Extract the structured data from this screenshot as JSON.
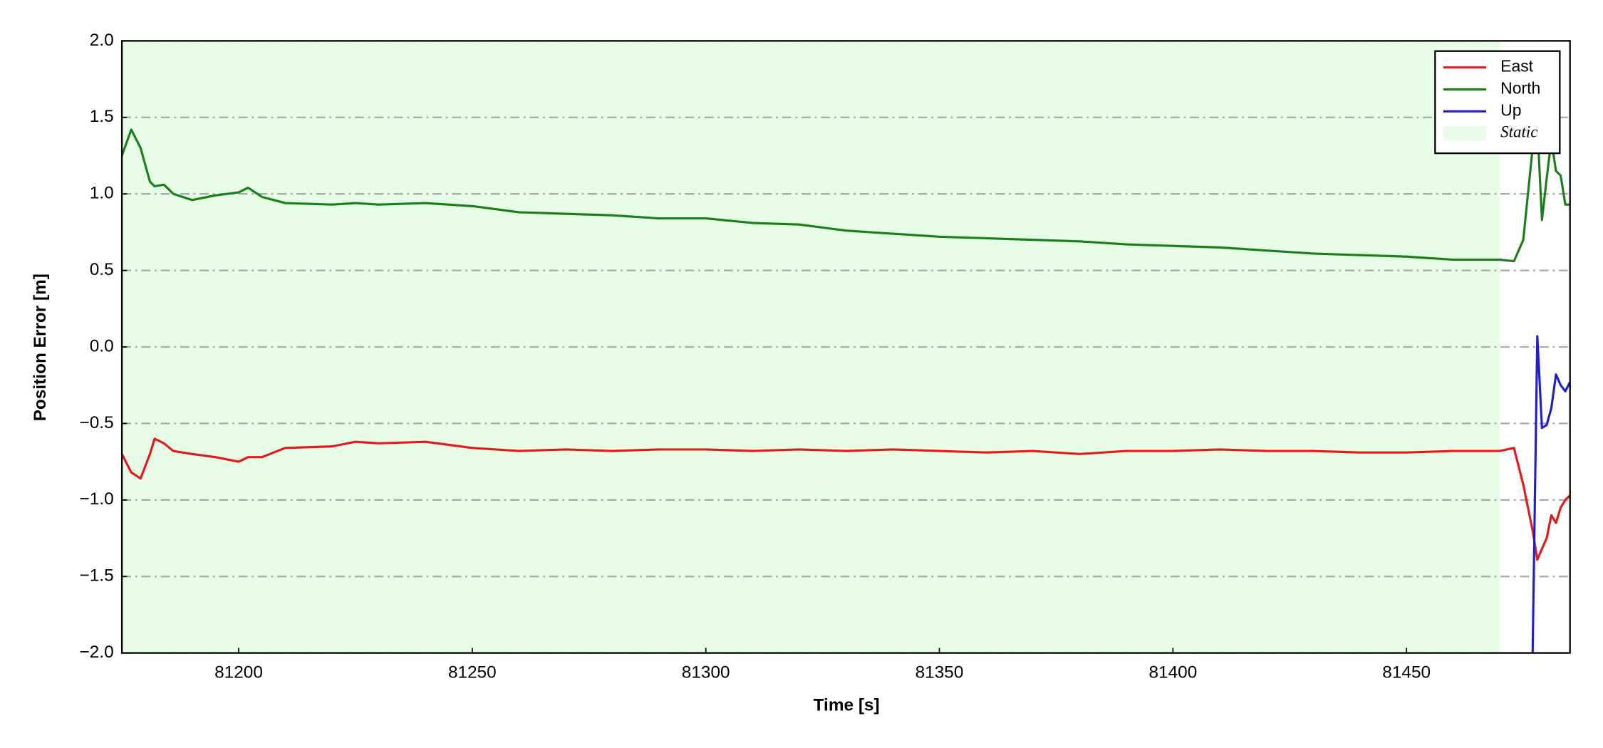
{
  "chart_data": {
    "type": "line",
    "xlabel": "Time [s]",
    "ylabel": "Position Error [m]",
    "x": [
      81175,
      81177,
      81179,
      81181,
      81182,
      81184,
      81186,
      81190,
      81195,
      81200,
      81202,
      81205,
      81210,
      81220,
      81225,
      81230,
      81240,
      81250,
      81260,
      81270,
      81280,
      81290,
      81300,
      81310,
      81320,
      81330,
      81340,
      81350,
      81360,
      81370,
      81380,
      81390,
      81400,
      81410,
      81420,
      81430,
      81440,
      81450,
      81460,
      81470,
      81473,
      81475,
      81477,
      81478,
      81479,
      81480,
      81481,
      81482,
      81483,
      81484,
      81485
    ],
    "series": [
      {
        "name": "East",
        "color": "#e31a1c",
        "values": [
          -0.7,
          -0.82,
          -0.86,
          -0.7,
          -0.6,
          -0.63,
          -0.68,
          -0.7,
          -0.72,
          -0.75,
          -0.72,
          -0.72,
          -0.66,
          -0.65,
          -0.62,
          -0.63,
          -0.62,
          -0.66,
          -0.68,
          -0.67,
          -0.68,
          -0.67,
          -0.67,
          -0.68,
          -0.67,
          -0.68,
          -0.67,
          -0.68,
          -0.69,
          -0.68,
          -0.7,
          -0.68,
          -0.68,
          -0.67,
          -0.68,
          -0.68,
          -0.69,
          -0.69,
          -0.68,
          -0.68,
          -0.66,
          -0.9,
          -1.2,
          -1.39,
          -1.32,
          -1.25,
          -1.1,
          -1.15,
          -1.05,
          -1.0,
          -0.97
        ]
      },
      {
        "name": "North",
        "color": "#1a7f1a",
        "values": [
          1.25,
          1.42,
          1.3,
          1.08,
          1.05,
          1.06,
          1.0,
          0.96,
          0.99,
          1.01,
          1.04,
          0.98,
          0.94,
          0.93,
          0.94,
          0.93,
          0.94,
          0.92,
          0.88,
          0.87,
          0.86,
          0.84,
          0.84,
          0.81,
          0.8,
          0.76,
          0.74,
          0.72,
          0.71,
          0.7,
          0.69,
          0.67,
          0.66,
          0.65,
          0.63,
          0.61,
          0.6,
          0.59,
          0.57,
          0.57,
          0.56,
          0.7,
          1.3,
          1.45,
          0.83,
          1.1,
          1.35,
          1.15,
          1.12,
          0.93,
          0.93
        ]
      },
      {
        "name": "Up",
        "color": "#1f1fcf",
        "values": [
          null,
          null,
          null,
          null,
          null,
          null,
          null,
          null,
          null,
          null,
          null,
          null,
          null,
          null,
          null,
          null,
          null,
          null,
          null,
          null,
          null,
          null,
          null,
          null,
          null,
          null,
          null,
          null,
          null,
          null,
          null,
          null,
          null,
          null,
          null,
          null,
          null,
          null,
          null,
          null,
          null,
          null,
          -2.0,
          0.07,
          -0.53,
          -0.51,
          -0.4,
          -0.18,
          -0.25,
          -0.29,
          -0.23
        ]
      }
    ],
    "shaded_regions": [
      {
        "name": "Static",
        "xlim": [
          81175,
          81470
        ],
        "color": "#e8fde8"
      }
    ],
    "xlim": [
      81175,
      81485
    ],
    "ylim": [
      -2.0,
      2.0
    ],
    "xticks": [
      81200,
      81250,
      81300,
      81350,
      81400,
      81450
    ],
    "yticks": [
      {
        "value": -2.0,
        "label": "−2.0"
      },
      {
        "value": -1.5,
        "label": "−1.5"
      },
      {
        "value": -1.0,
        "label": "−1.0"
      },
      {
        "value": -0.5,
        "label": "−0.5"
      },
      {
        "value": 0.0,
        "label": "0.0"
      },
      {
        "value": 0.5,
        "label": "0.5"
      },
      {
        "value": 1.0,
        "label": "1.0"
      },
      {
        "value": 1.5,
        "label": "1.5"
      },
      {
        "value": 2.0,
        "label": "2.0"
      }
    ],
    "grid": "y",
    "legend": "upper right"
  }
}
